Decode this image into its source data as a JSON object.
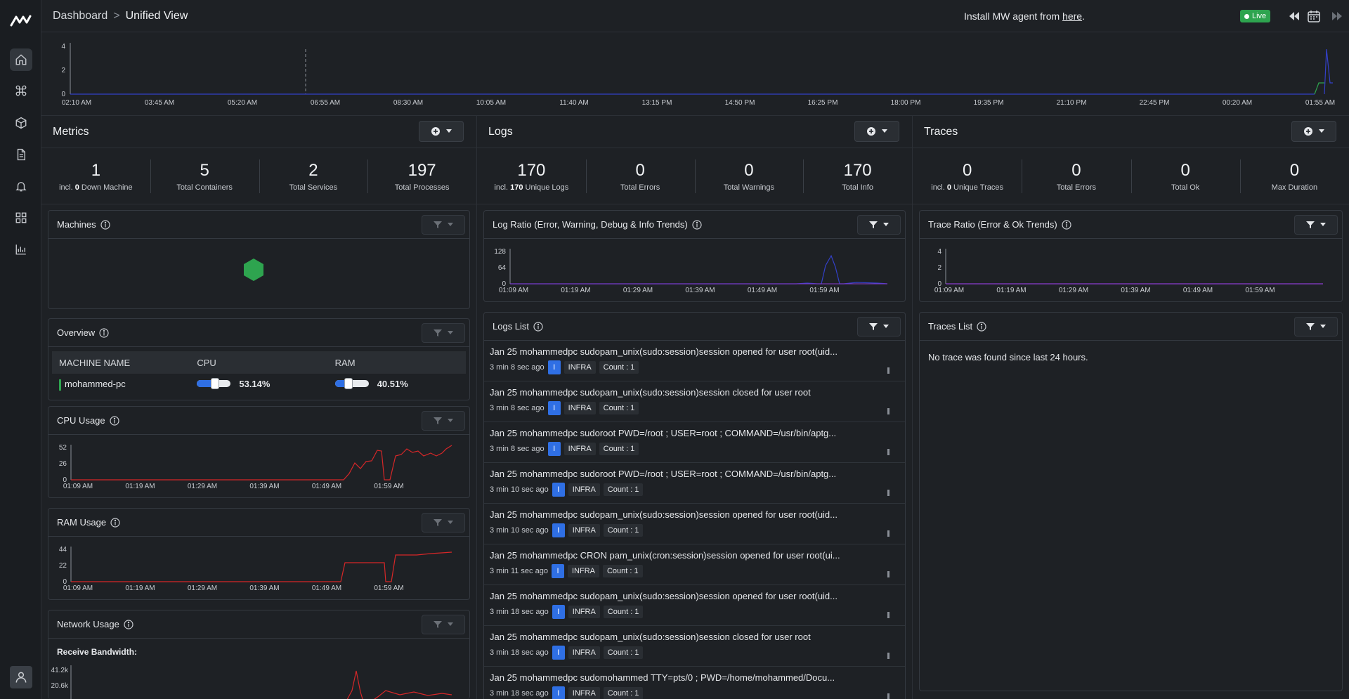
{
  "breadcrumb": {
    "root": "Dashboard",
    "separator": ">",
    "current": "Unified View"
  },
  "install": {
    "prefix": "Install MW agent from ",
    "link": "here",
    "suffix": "."
  },
  "live_label": "Live",
  "timeline": {
    "y_ticks": [
      "4",
      "2",
      "0"
    ],
    "x_ticks": [
      "02:10 AM",
      "03:45 AM",
      "05:20 AM",
      "06:55 AM",
      "08:30 AM",
      "10:05 AM",
      "11:40 AM",
      "13:15 PM",
      "14:50 PM",
      "16:25 PM",
      "18:00 PM",
      "19:35 PM",
      "21:10 PM",
      "22:45 PM",
      "00:20 AM",
      "01:55 AM"
    ]
  },
  "metrics": {
    "title": "Metrics",
    "stats": [
      {
        "num": "1",
        "pre": "incl. ",
        "bold": "0",
        "post": " Down Machine"
      },
      {
        "num": "5",
        "pre": "Total Containers",
        "bold": "",
        "post": ""
      },
      {
        "num": "2",
        "pre": "Total Services",
        "bold": "",
        "post": ""
      },
      {
        "num": "197",
        "pre": "Total Processes",
        "bold": "",
        "post": ""
      }
    ],
    "machines_title": "Machines",
    "overview_title": "Overview",
    "overview_headers": [
      "MACHINE NAME",
      "CPU",
      "RAM"
    ],
    "overview_row": {
      "name": "mohammed-pc",
      "cpu": "53.14%",
      "ram": "40.51%",
      "cpu_value": 53.14,
      "ram_value": 40.51
    },
    "cpu_title": "CPU Usage",
    "cpu_y_ticks": [
      "52",
      "26",
      "0"
    ],
    "ram_title": "RAM Usage",
    "ram_y_ticks": [
      "44",
      "22",
      "0"
    ],
    "net_title": "Network Usage",
    "net_label": "Receive Bandwidth:",
    "net_y_ticks": [
      "41.2k",
      "20.6k"
    ],
    "x_ticks": [
      "01:09 AM",
      "01:19 AM",
      "01:29 AM",
      "01:39 AM",
      "01:49 AM",
      "01:59 AM"
    ]
  },
  "logs": {
    "title": "Logs",
    "stats": [
      {
        "num": "170",
        "pre": "incl. ",
        "bold": "170",
        "post": " Unique Logs"
      },
      {
        "num": "0",
        "pre": "Total Errors",
        "bold": "",
        "post": ""
      },
      {
        "num": "0",
        "pre": "Total Warnings",
        "bold": "",
        "post": ""
      },
      {
        "num": "170",
        "pre": "Total Info",
        "bold": "",
        "post": ""
      }
    ],
    "ratio_title": "Log Ratio (Error, Warning, Debug & Info Trends)",
    "ratio_y_ticks": [
      "128",
      "64",
      "0"
    ],
    "list_title": "Logs List",
    "items": [
      {
        "msg": "Jan 25 mohammedpc sudopam_unix(sudo:session)session opened for user root(uid...",
        "time": "3 min 8 sec ago",
        "level": "I",
        "tag": "INFRA",
        "count": "Count : 1"
      },
      {
        "msg": "Jan 25 mohammedpc sudopam_unix(sudo:session)session closed for user root",
        "time": "3 min 8 sec ago",
        "level": "I",
        "tag": "INFRA",
        "count": "Count : 1"
      },
      {
        "msg": "Jan 25 mohammedpc sudoroot PWD=/root ; USER=root ; COMMAND=/usr/bin/aptg...",
        "time": "3 min 8 sec ago",
        "level": "I",
        "tag": "INFRA",
        "count": "Count : 1"
      },
      {
        "msg": "Jan 25 mohammedpc sudoroot PWD=/root ; USER=root ; COMMAND=/usr/bin/aptg...",
        "time": "3 min 10 sec ago",
        "level": "I",
        "tag": "INFRA",
        "count": "Count : 1"
      },
      {
        "msg": "Jan 25 mohammedpc sudopam_unix(sudo:session)session opened for user root(uid...",
        "time": "3 min 10 sec ago",
        "level": "I",
        "tag": "INFRA",
        "count": "Count : 1"
      },
      {
        "msg": "Jan 25 mohammedpc CRON pam_unix(cron:session)session opened for user root(ui...",
        "time": "3 min 11 sec ago",
        "level": "I",
        "tag": "INFRA",
        "count": "Count : 1"
      },
      {
        "msg": "Jan 25 mohammedpc sudopam_unix(sudo:session)session opened for user root(uid...",
        "time": "3 min 18 sec ago",
        "level": "I",
        "tag": "INFRA",
        "count": "Count : 1"
      },
      {
        "msg": "Jan 25 mohammedpc sudopam_unix(sudo:session)session closed for user root",
        "time": "3 min 18 sec ago",
        "level": "I",
        "tag": "INFRA",
        "count": "Count : 1"
      },
      {
        "msg": "Jan 25 mohammedpc sudomohammed TTY=pts/0 ; PWD=/home/mohammed/Docu...",
        "time": "3 min 18 sec ago",
        "level": "I",
        "tag": "INFRA",
        "count": "Count : 1"
      }
    ]
  },
  "traces": {
    "title": "Traces",
    "stats": [
      {
        "num": "0",
        "pre": "incl. ",
        "bold": "0",
        "post": " Unique Traces"
      },
      {
        "num": "0",
        "pre": "Total Errors",
        "bold": "",
        "post": ""
      },
      {
        "num": "0",
        "pre": "Total Ok",
        "bold": "",
        "post": ""
      },
      {
        "num": "0",
        "pre": "Max Duration",
        "bold": "",
        "post": ""
      }
    ],
    "ratio_title": "Trace Ratio (Error & Ok Trends)",
    "ratio_y_ticks": [
      "4",
      "2",
      "0"
    ],
    "list_title": "Traces List",
    "empty": "No trace was found since last 24 hours."
  },
  "colors": {
    "accent": "#2f6fe4",
    "live": "#2ea44f",
    "hexagon": "#2ea44f",
    "cpu_line": "#d62728",
    "info_line": "#3340c8",
    "ok_line": "#8a3ccf"
  }
}
